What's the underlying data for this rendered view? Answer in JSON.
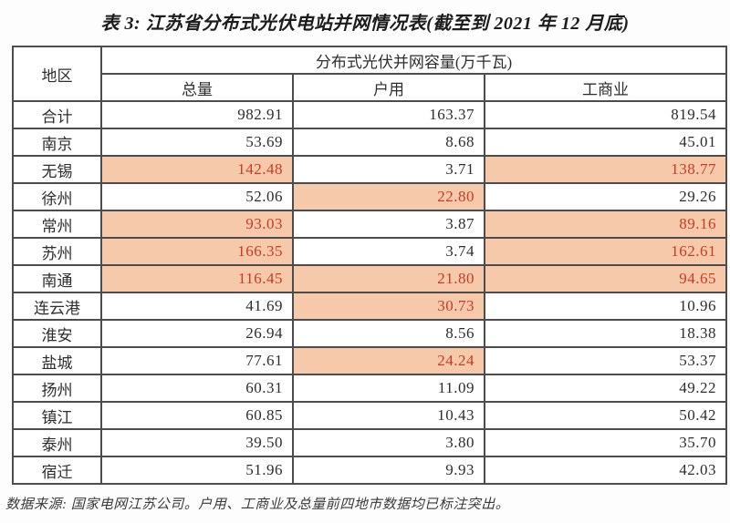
{
  "title": "表 3: 江苏省分布式光伏电站并网情况表(截至到 2021 年 12 月底)",
  "table": {
    "region_header": "地区",
    "capacity_header": "分布式光伏并网容量(万千瓦)",
    "columns": {
      "total": "总量",
      "household": "户用",
      "industrial": "工商业"
    },
    "unit": "万千瓦",
    "rows": [
      {
        "region": "合计",
        "total": "982.91",
        "total_hl": false,
        "household": "163.37",
        "household_hl": false,
        "industrial": "819.54",
        "industrial_hl": false
      },
      {
        "region": "南京",
        "total": "53.69",
        "total_hl": false,
        "household": "8.68",
        "household_hl": false,
        "industrial": "45.01",
        "industrial_hl": false
      },
      {
        "region": "无锡",
        "total": "142.48",
        "total_hl": true,
        "household": "3.71",
        "household_hl": false,
        "industrial": "138.77",
        "industrial_hl": true
      },
      {
        "region": "徐州",
        "total": "52.06",
        "total_hl": false,
        "household": "22.80",
        "household_hl": true,
        "industrial": "29.26",
        "industrial_hl": false
      },
      {
        "region": "常州",
        "total": "93.03",
        "total_hl": true,
        "household": "3.87",
        "household_hl": false,
        "industrial": "89.16",
        "industrial_hl": true
      },
      {
        "region": "苏州",
        "total": "166.35",
        "total_hl": true,
        "household": "3.74",
        "household_hl": false,
        "industrial": "162.61",
        "industrial_hl": true
      },
      {
        "region": "南通",
        "total": "116.45",
        "total_hl": true,
        "household": "21.80",
        "household_hl": true,
        "industrial": "94.65",
        "industrial_hl": true
      },
      {
        "region": "连云港",
        "total": "41.69",
        "total_hl": false,
        "household": "30.73",
        "household_hl": true,
        "industrial": "10.96",
        "industrial_hl": false
      },
      {
        "region": "淮安",
        "total": "26.94",
        "total_hl": false,
        "household": "8.56",
        "household_hl": false,
        "industrial": "18.38",
        "industrial_hl": false
      },
      {
        "region": "盐城",
        "total": "77.61",
        "total_hl": false,
        "household": "24.24",
        "household_hl": true,
        "industrial": "53.37",
        "industrial_hl": false
      },
      {
        "region": "扬州",
        "total": "60.31",
        "total_hl": false,
        "household": "11.09",
        "household_hl": false,
        "industrial": "49.22",
        "industrial_hl": false
      },
      {
        "region": "镇江",
        "total": "60.85",
        "total_hl": false,
        "household": "10.43",
        "household_hl": false,
        "industrial": "50.42",
        "industrial_hl": false
      },
      {
        "region": "泰州",
        "total": "39.50",
        "total_hl": false,
        "household": "3.80",
        "household_hl": false,
        "industrial": "35.70",
        "industrial_hl": false
      },
      {
        "region": "宿迁",
        "total": "51.96",
        "total_hl": false,
        "household": "9.93",
        "household_hl": false,
        "industrial": "42.03",
        "industrial_hl": false
      }
    ]
  },
  "footer": "数据来源: 国家电网江苏公司。户用、工商业及总量前四地市数据均已标注突出。",
  "colors": {
    "highlight_bg": "#f5c9a9",
    "highlight_text": "#cc3a28",
    "border": "#4c4c4c",
    "text": "#2e2e2e"
  }
}
